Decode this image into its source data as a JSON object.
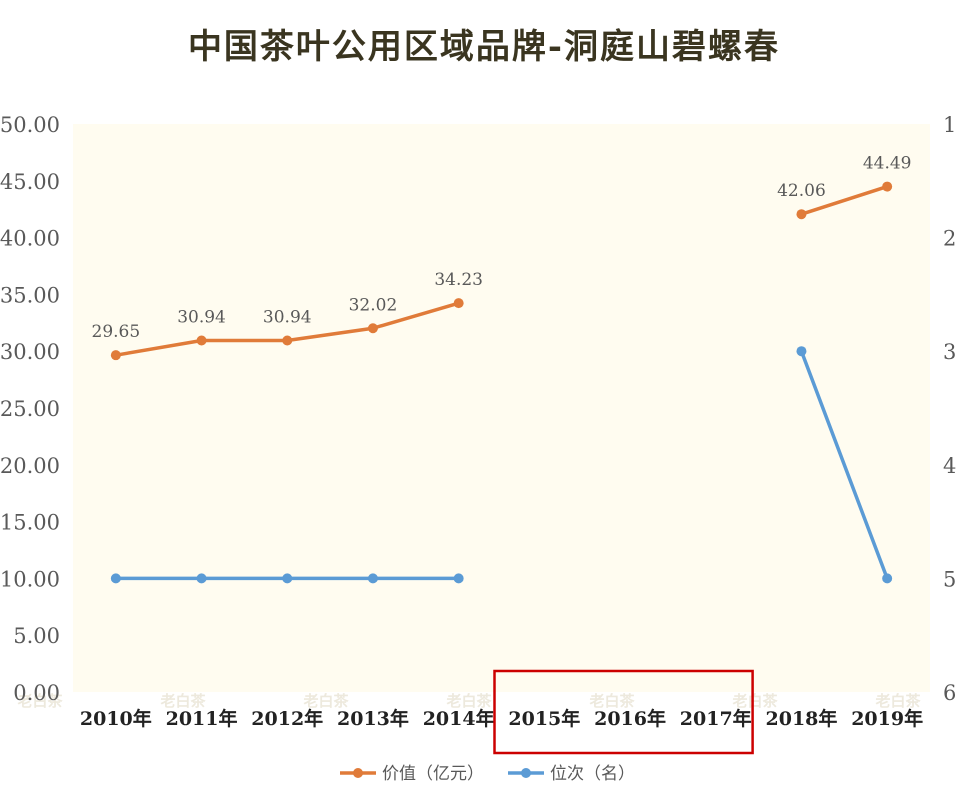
{
  "chart_data": {
    "type": "line",
    "title": "中国茶叶公用区域品牌-洞庭山碧螺春",
    "categories": [
      "2010年",
      "2011年",
      "2012年",
      "2013年",
      "2014年",
      "2015年",
      "2016年",
      "2017年",
      "2018年",
      "2019年"
    ],
    "y_left": {
      "ticks": [
        "0.00",
        "5.00",
        "10.00",
        "15.00",
        "20.00",
        "25.00",
        "30.00",
        "35.00",
        "40.00",
        "45.00",
        "50.00"
      ],
      "range": [
        0,
        50
      ]
    },
    "y_right": {
      "ticks": [
        "1",
        "2",
        "3",
        "4",
        "5",
        "6"
      ],
      "range": [
        1,
        6
      ],
      "reversed": true
    },
    "series": [
      {
        "name": "价值（亿元）",
        "axis": "left",
        "color": "#e07b39",
        "values": [
          29.65,
          30.94,
          30.94,
          32.02,
          34.23,
          null,
          null,
          null,
          42.06,
          44.49
        ],
        "labels": [
          "29.65",
          "30.94",
          "30.94",
          "32.02",
          "34.23",
          "",
          "",
          "",
          "42.06",
          "44.49"
        ]
      },
      {
        "name": "位次（名）",
        "axis": "right",
        "color": "#5b9bd5",
        "values": [
          5,
          5,
          5,
          5,
          5,
          null,
          null,
          null,
          3,
          5
        ]
      }
    ],
    "legend_position": "bottom",
    "highlight": {
      "from_category": "2015年",
      "to_category": "2017年",
      "color": "#cc0000"
    },
    "plot_background": "#fffcf0",
    "grid": false
  },
  "watermarks": [
    "老白茶",
    "老白茶",
    "老白茶",
    "老白茶",
    "老白茶",
    "老白茶",
    "老白茶"
  ]
}
